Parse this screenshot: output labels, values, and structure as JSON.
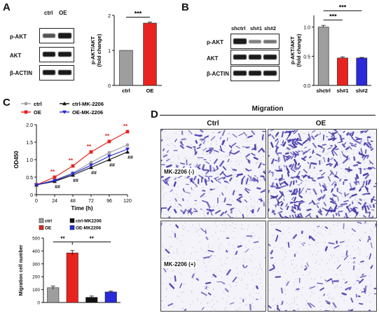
{
  "panels": {
    "A": {
      "letter": "A",
      "lanes": [
        "ctrl",
        "OE"
      ],
      "rows": [
        "p-AKT",
        "AKT",
        "β-ACTIN"
      ],
      "chart_data": {
        "type": "bar",
        "categories": [
          "ctrl",
          "OE"
        ],
        "values": [
          1.0,
          1.78
        ],
        "errors": [
          0.0,
          0.03
        ],
        "colors": [
          "#9e9e9e",
          "#e8231f"
        ],
        "ylabel": "p-AKT/AKT\n(fold change)",
        "ylim": [
          0,
          2.0
        ],
        "significance": "***"
      }
    },
    "B": {
      "letter": "B",
      "lanes": [
        "shctrl",
        "sh#1",
        "sh#2"
      ],
      "rows": [
        "p-AKT",
        "AKT",
        "β-ACTIN"
      ],
      "chart_data": {
        "type": "bar",
        "categories": [
          "shctrl",
          "sh#1",
          "sh#2"
        ],
        "values": [
          1.0,
          0.47,
          0.47
        ],
        "errors": [
          0.03,
          0.02,
          0.01
        ],
        "colors": [
          "#9e9e9e",
          "#e8231f",
          "#2a2ad8"
        ],
        "ylabel": "p-AKT/AKT\n(fold change)",
        "ylim": [
          0,
          1.2
        ],
        "significance": [
          "***",
          "***"
        ]
      }
    },
    "C": {
      "letter": "C",
      "line_chart": {
        "type": "line",
        "xlabel": "Time  (h)",
        "ylabel": "OD450",
        "x": [
          0,
          24,
          48,
          72,
          96,
          120
        ],
        "ylim": [
          0,
          2.0
        ],
        "yticks": [
          0,
          0.5,
          1.0,
          1.5,
          2.0
        ],
        "legend": [
          "ctrl",
          "OE",
          "ctrl-MK-2206",
          "OE-MK-2206"
        ],
        "series": [
          {
            "name": "ctrl",
            "color": "#9e9e9e",
            "marker": "circle",
            "values": [
              0.28,
              0.42,
              0.62,
              0.92,
              1.2,
              1.42
            ]
          },
          {
            "name": "OE",
            "color": "#e8231f",
            "marker": "square",
            "values": [
              0.28,
              0.5,
              0.82,
              1.22,
              1.52,
              1.8
            ]
          },
          {
            "name": "ctrl-MK-2206",
            "color": "#111111",
            "marker": "triangle-up",
            "values": [
              0.28,
              0.38,
              0.56,
              0.78,
              1.0,
              1.22
            ]
          },
          {
            "name": "OE-MK-2206",
            "color": "#2a2ad8",
            "marker": "triangle-down",
            "values": [
              0.28,
              0.4,
              0.6,
              0.84,
              1.1,
              1.3
            ]
          }
        ],
        "star_annot": [
          "**",
          "**",
          "**",
          "**",
          "**"
        ],
        "hash_annot": [
          "##",
          "##",
          "##",
          "##",
          "##"
        ]
      },
      "bar_chart": {
        "type": "bar",
        "categories": [
          "ctrl",
          "OE",
          "ctrl-MK2206",
          "OE-MK2206"
        ],
        "values": [
          115,
          385,
          40,
          82
        ],
        "errors": [
          12,
          18,
          10,
          6
        ],
        "colors": [
          "#9e9e9e",
          "#e8231f",
          "#111111",
          "#2a2ad8"
        ],
        "ylabel": "Migration cell number",
        "ylim": [
          0,
          500
        ],
        "yticks": [
          0,
          100,
          200,
          300,
          400,
          500
        ],
        "legend": [
          "ctrl",
          "ctrl-MK2206",
          "OE",
          "OE-MK2206"
        ],
        "significance": [
          "**",
          "**"
        ]
      }
    },
    "D": {
      "letter": "D",
      "title": "Migration",
      "cols": [
        "Ctrl",
        "OE"
      ],
      "rows": [
        "MK-2206 (-)",
        "MK-2206 (+)"
      ]
    }
  }
}
